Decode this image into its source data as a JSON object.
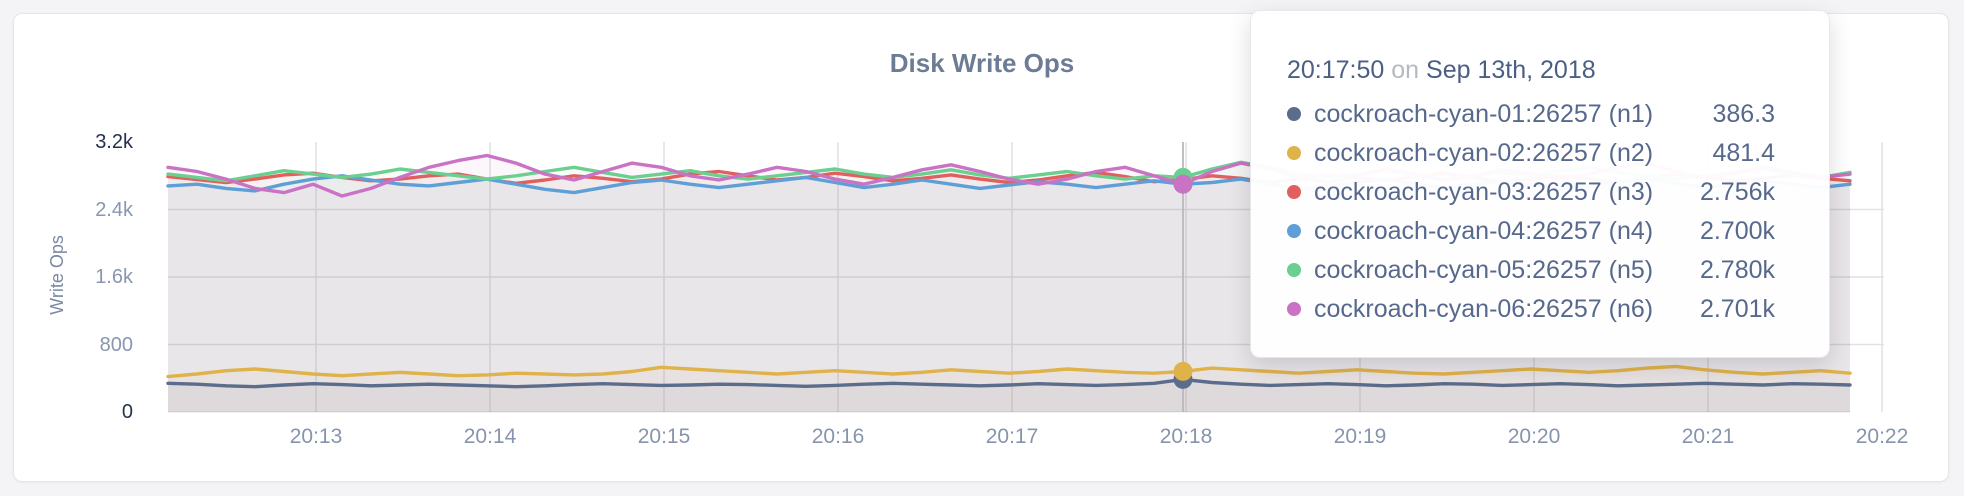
{
  "chart": {
    "title": "Disk Write Ops",
    "y_axis_label": "Write Ops"
  },
  "tooltip": {
    "time": "20:17:50",
    "conjunction": "on",
    "date": "Sep 13th, 2018"
  },
  "chart_data": {
    "type": "line",
    "title": "Disk Write Ops",
    "xlabel": "",
    "ylabel": "Write Ops",
    "ylim": [
      0,
      3200
    ],
    "x_ticks": [
      "20:13",
      "20:14",
      "20:15",
      "20:16",
      "20:17",
      "20:18",
      "20:19",
      "20:20",
      "20:21",
      "20:22"
    ],
    "y_ticks": [
      {
        "label": "0",
        "value": 0,
        "strong": true
      },
      {
        "label": "800",
        "value": 800,
        "strong": false
      },
      {
        "label": "1.6k",
        "value": 1600,
        "strong": false
      },
      {
        "label": "2.4k",
        "value": 2400,
        "strong": false
      },
      {
        "label": "3.2k",
        "value": 3200,
        "strong": true
      }
    ],
    "grid": true,
    "legend_position": "tooltip",
    "hover_index": 35,
    "seconds_per_point": 10,
    "series": [
      {
        "name": "cockroach-cyan-01:26257 (n1)",
        "color": "#5b6c8c",
        "hover_value_label": "386.3",
        "values": [
          340,
          330,
          310,
          300,
          320,
          335,
          325,
          310,
          320,
          330,
          320,
          310,
          300,
          310,
          325,
          335,
          325,
          315,
          320,
          330,
          325,
          315,
          305,
          315,
          330,
          340,
          330,
          320,
          310,
          320,
          335,
          325,
          315,
          325,
          340,
          386.3,
          350,
          330,
          315,
          325,
          335,
          325,
          310,
          320,
          335,
          330,
          315,
          325,
          335,
          325,
          310,
          320,
          330,
          340,
          330,
          320,
          335,
          330,
          320
        ]
      },
      {
        "name": "cockroach-cyan-02:26257 (n2)",
        "color": "#e0b24a",
        "hover_value_label": "481.4",
        "values": [
          420,
          450,
          490,
          510,
          480,
          450,
          430,
          450,
          470,
          450,
          430,
          440,
          460,
          450,
          440,
          450,
          480,
          530,
          510,
          490,
          470,
          450,
          470,
          490,
          470,
          450,
          470,
          500,
          480,
          460,
          480,
          510,
          490,
          470,
          460,
          481.4,
          520,
          500,
          480,
          460,
          480,
          500,
          480,
          460,
          450,
          470,
          490,
          510,
          490,
          470,
          490,
          520,
          540,
          500,
          470,
          450,
          470,
          490,
          460
        ]
      },
      {
        "name": "cockroach-cyan-03:26257 (n3)",
        "color": "#e25f5f",
        "hover_value_label": "2.756k",
        "values": [
          2790,
          2755,
          2720,
          2760,
          2810,
          2830,
          2780,
          2740,
          2760,
          2800,
          2820,
          2760,
          2710,
          2750,
          2800,
          2770,
          2730,
          2760,
          2820,
          2850,
          2800,
          2750,
          2780,
          2830,
          2790,
          2740,
          2770,
          2810,
          2760,
          2720,
          2750,
          2800,
          2840,
          2790,
          2730,
          2756,
          2800,
          2770,
          2720,
          2760,
          2810,
          2780,
          2740,
          2790,
          2830,
          2780,
          2730,
          2760,
          2800,
          2760,
          2720,
          2770,
          2820,
          2780,
          2740,
          2770,
          2810,
          2770,
          2740
        ]
      },
      {
        "name": "cockroach-cyan-04:26257 (n4)",
        "color": "#5f9fd7",
        "hover_value_label": "2.700k",
        "values": [
          2680,
          2700,
          2650,
          2620,
          2700,
          2760,
          2800,
          2750,
          2700,
          2680,
          2720,
          2760,
          2700,
          2640,
          2600,
          2660,
          2720,
          2750,
          2700,
          2660,
          2700,
          2740,
          2780,
          2720,
          2660,
          2700,
          2750,
          2700,
          2650,
          2690,
          2730,
          2700,
          2660,
          2700,
          2740,
          2700,
          2720,
          2760,
          2700,
          2640,
          2680,
          2720,
          2760,
          2700,
          2660,
          2700,
          2740,
          2700,
          2650,
          2690,
          2730,
          2770,
          2710,
          2660,
          2700,
          2740,
          2700,
          2660,
          2700
        ]
      },
      {
        "name": "cockroach-cyan-05:26257 (n5)",
        "color": "#6bcf90",
        "hover_value_label": "2.780k",
        "values": [
          2820,
          2780,
          2740,
          2800,
          2860,
          2820,
          2780,
          2820,
          2880,
          2840,
          2800,
          2760,
          2800,
          2850,
          2900,
          2840,
          2780,
          2820,
          2860,
          2800,
          2760,
          2800,
          2840,
          2880,
          2820,
          2780,
          2820,
          2870,
          2810,
          2770,
          2810,
          2850,
          2800,
          2760,
          2800,
          2780,
          2880,
          2960,
          2900,
          2820,
          2780,
          2820,
          2860,
          2800,
          2760,
          2800,
          2840,
          2800,
          2860,
          2900,
          2840,
          2800,
          2760,
          2800,
          2840,
          2880,
          2820,
          2780,
          2840
        ]
      },
      {
        "name": "cockroach-cyan-06:26257 (n6)",
        "color": "#ca72c3",
        "hover_value_label": "2.701k",
        "values": [
          2900,
          2850,
          2760,
          2650,
          2600,
          2700,
          2560,
          2650,
          2780,
          2900,
          2980,
          3040,
          2950,
          2820,
          2750,
          2850,
          2950,
          2900,
          2800,
          2750,
          2820,
          2900,
          2850,
          2760,
          2700,
          2780,
          2870,
          2930,
          2850,
          2760,
          2700,
          2760,
          2850,
          2900,
          2800,
          2701,
          2850,
          2950,
          2880,
          2780,
          2720,
          2800,
          2880,
          2820,
          2740,
          2800,
          2870,
          2820,
          2760,
          2820,
          2900,
          2950,
          2850,
          2780,
          2830,
          2900,
          2840,
          2780,
          2820
        ]
      }
    ]
  },
  "colors": {
    "grid": "#e1e1e3",
    "hover_line": "#b9b9bd",
    "tick_strong": "#25314e",
    "tick_muted": "#8897ae"
  }
}
